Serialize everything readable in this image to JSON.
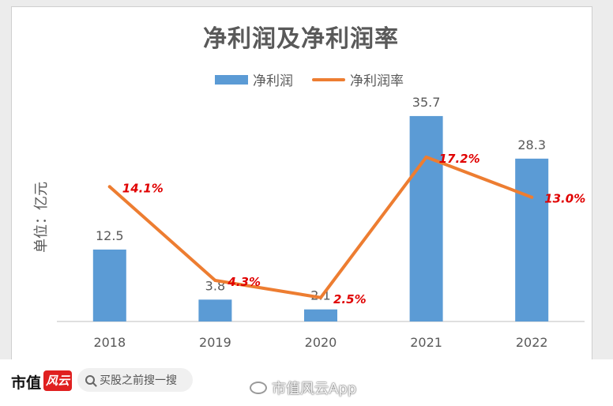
{
  "title": "净利润及净利润率",
  "legend": {
    "bar_label": "净利润",
    "line_label": "净利润率"
  },
  "ylabel": "单位：亿元",
  "colors": {
    "bar": "#5b9bd5",
    "line": "#ed7d31",
    "line_label": "#e00000",
    "text": "#595959"
  },
  "chart_data": {
    "type": "bar",
    "categories": [
      "2018",
      "2019",
      "2020",
      "2021",
      "2022"
    ],
    "series": [
      {
        "name": "净利润",
        "type": "bar",
        "values": [
          12.5,
          3.8,
          2.1,
          35.7,
          28.3
        ],
        "labels": [
          "12.5",
          "3.8",
          "2.1",
          "35.7",
          "28.3"
        ]
      },
      {
        "name": "净利润率",
        "type": "line",
        "values": [
          14.1,
          4.3,
          2.5,
          17.2,
          13.0
        ],
        "labels": [
          "14.1%",
          "4.3%",
          "2.5%",
          "17.2%",
          "13.0%"
        ]
      }
    ],
    "ylim": [
      0,
      36
    ],
    "y2lim": [
      0,
      20
    ],
    "ylabel": "单位：亿元",
    "grid": false,
    "legend": "top-center"
  },
  "footer": {
    "brand": "市值",
    "brand_mark": "风云",
    "search_placeholder": "买股之前搜一搜",
    "watermark": "市值风云App"
  }
}
